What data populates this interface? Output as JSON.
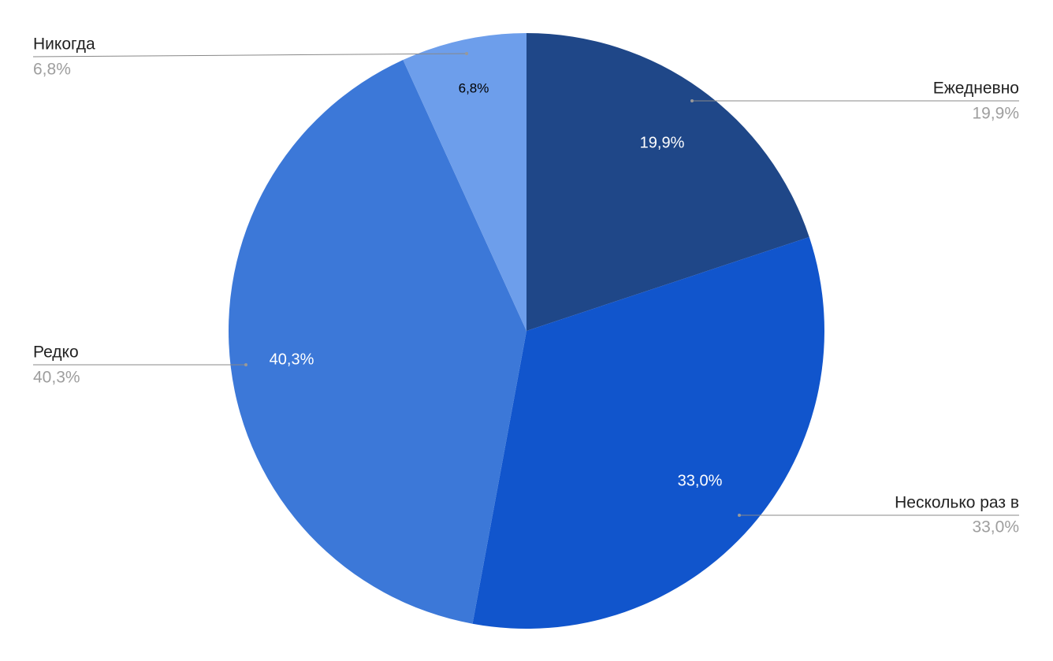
{
  "chart_data": {
    "type": "pie",
    "categories": [
      "Ежедневно",
      "Несколько раз в",
      "Редко",
      "Никогда"
    ],
    "values": [
      19.9,
      33.0,
      40.3,
      6.8
    ],
    "value_labels": [
      "19,9%",
      "33,0%",
      "40,3%",
      "6,8%"
    ],
    "colors": [
      "#1f4788",
      "#1155cc",
      "#3c78d8",
      "#6d9eeb"
    ],
    "inner_label_colors": [
      "#ffffff",
      "#ffffff",
      "#ffffff",
      "#000000"
    ]
  }
}
